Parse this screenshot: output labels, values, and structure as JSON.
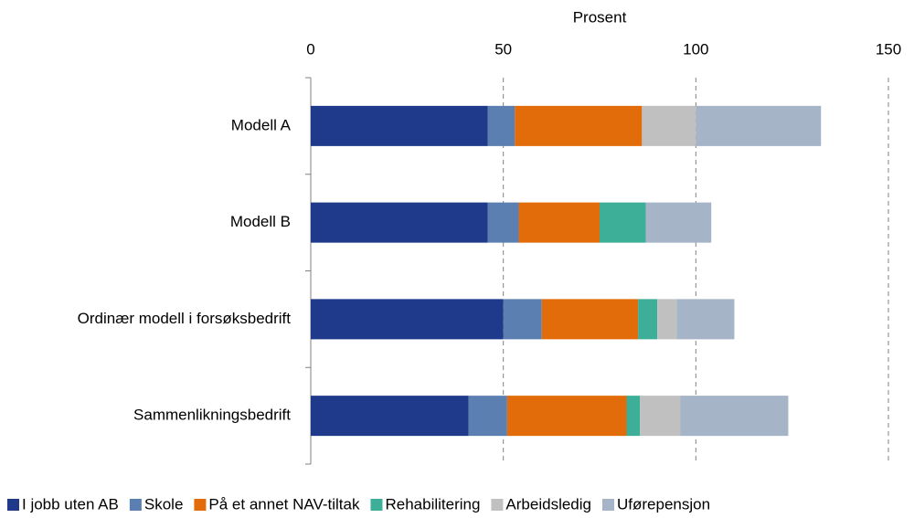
{
  "chart_data": {
    "type": "stacked_barh",
    "xlabel": "Prosent",
    "categories": [
      "Modell A",
      "Modell B",
      "Ordinær modell i forsøksbedrift",
      "Sammenlikningsbedrift"
    ],
    "series": [
      {
        "name": "I jobb uten AB",
        "color": "#1f3a8a",
        "values": [
          46,
          46,
          50,
          41
        ]
      },
      {
        "name": "Skole",
        "color": "#5b7fb1",
        "values": [
          7,
          8,
          10,
          10
        ]
      },
      {
        "name": "På et annet NAV-tiltak",
        "color": "#e36c0a",
        "values": [
          33,
          21,
          25,
          31
        ]
      },
      {
        "name": "Rehabilitering",
        "color": "#3daf98",
        "values": [
          0,
          12,
          5,
          3.5
        ]
      },
      {
        "name": "Arbeidsledig",
        "color": "#c0c0c0",
        "values": [
          14,
          0,
          5,
          10.5
        ]
      },
      {
        "name": "Uførepensjon",
        "color": "#a6b4c8",
        "values": [
          32.5,
          17,
          15,
          28
        ]
      }
    ],
    "xlim": [
      0,
      150
    ],
    "xticks": [
      0,
      50,
      100,
      150
    ],
    "grid": true,
    "legend": "bottom"
  }
}
